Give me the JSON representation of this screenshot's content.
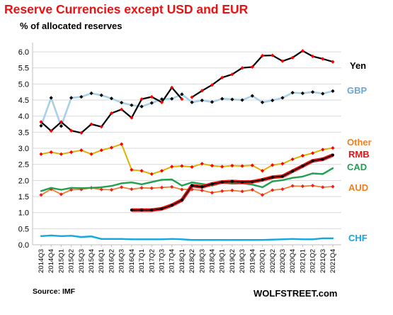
{
  "chart_data": {
    "type": "line",
    "title": "Reserve Currencies except USD and EUR",
    "subtitle": "% of allocated reserves",
    "source": "Source: IMF",
    "brand": "WOLFSTREET.com",
    "ylim": [
      0,
      6.2
    ],
    "y_ticks": [
      "0.0",
      "0.5",
      "1.0",
      "1.5",
      "2.0",
      "2.5",
      "3.0",
      "3.5",
      "4.0",
      "4.5",
      "5.0",
      "5.5",
      "6.0"
    ],
    "grid": "horizontal",
    "x": [
      "2014Q3",
      "2014Q4",
      "2015Q1",
      "2015Q2",
      "2015Q3",
      "2015Q4",
      "2016Q1",
      "2016Q2",
      "2016Q3",
      "2016Q4",
      "2017Q1",
      "2017Q2",
      "2017Q3",
      "2017Q4",
      "2018Q1",
      "2018Q2",
      "2018Q3",
      "2018Q4",
      "2019Q1",
      "2019Q2",
      "2019Q3",
      "2019Q4",
      "2020Q1",
      "2020Q2",
      "2020Q3",
      "2020Q4",
      "2021Q1",
      "2021Q2",
      "2021Q3",
      "2021Q4"
    ],
    "series": [
      {
        "name": "Yen",
        "color": "#ff0000",
        "line_color": "#000000",
        "stroke": 2.2,
        "marker": "diamond",
        "label_color": "#000000",
        "values": [
          null,
          null,
          null,
          null,
          null,
          null,
          null,
          null,
          null,
          null,
          null,
          null,
          null,
          null,
          null,
          4.59,
          4.79,
          4.97,
          5.2,
          5.3,
          5.5,
          5.53,
          5.88,
          5.89,
          5.71,
          5.82,
          6.03,
          5.86,
          5.78,
          5.69
        ]
      },
      {
        "name": "",
        "color": "#ff0000",
        "line_color": "#000000",
        "stroke": 2.2,
        "marker": "diamond",
        "label_color": "#000000",
        "values": [
          3.82,
          3.54,
          3.82,
          3.55,
          3.48,
          3.75,
          3.67,
          4.09,
          4.21,
          3.95,
          4.53,
          4.6,
          4.43,
          4.89,
          4.53,
          null,
          null,
          null,
          null,
          null,
          null,
          null,
          null,
          null,
          null,
          null,
          null,
          null,
          null,
          null
        ]
      },
      {
        "name": "GBP",
        "color": "#000000",
        "line_color": "#a8d0e6",
        "stroke": 2.6,
        "marker": "diamond",
        "label_color": "#6aa6d6",
        "values": [
          3.7,
          4.57,
          3.69,
          4.57,
          4.6,
          4.71,
          4.65,
          4.55,
          4.42,
          4.34,
          4.3,
          4.41,
          4.53,
          4.54,
          4.68,
          4.43,
          4.49,
          4.44,
          4.54,
          4.52,
          4.5,
          4.63,
          4.43,
          4.49,
          4.57,
          4.73,
          4.71,
          4.75,
          4.7,
          4.78
        ]
      },
      {
        "name": "Other",
        "color": "#ff0000",
        "line_color": "#e0b000",
        "stroke": 2.0,
        "marker": "diamond",
        "label_color": "#f08020",
        "values": [
          2.82,
          2.88,
          2.82,
          2.88,
          2.94,
          2.82,
          2.94,
          3.02,
          3.13,
          2.33,
          2.3,
          2.2,
          2.3,
          2.43,
          2.45,
          2.42,
          2.52,
          2.46,
          2.43,
          2.46,
          2.45,
          2.47,
          2.3,
          2.48,
          2.52,
          2.66,
          2.77,
          2.85,
          2.96,
          3.01
        ]
      },
      {
        "name": "RMB",
        "color": "#ff0000",
        "line_color": "#000000",
        "stroke": 2.6,
        "marker": "none",
        "label_color": "#ee1010",
        "values": [
          null,
          null,
          null,
          null,
          null,
          null,
          null,
          null,
          null,
          1.08,
          1.08,
          1.08,
          1.12,
          1.23,
          1.39,
          1.84,
          1.8,
          1.89,
          1.95,
          1.97,
          1.95,
          1.96,
          2.02,
          2.1,
          2.13,
          2.29,
          2.45,
          2.61,
          2.66,
          2.79
        ]
      },
      {
        "name": "CAD",
        "color": "#20a050",
        "line_color": "#20a050",
        "stroke": 2.4,
        "marker": "none",
        "label_color": "#20a050",
        "values": [
          1.67,
          1.77,
          1.71,
          1.77,
          1.76,
          1.77,
          1.79,
          1.83,
          1.91,
          1.94,
          1.88,
          1.95,
          2.02,
          2.03,
          1.84,
          1.94,
          1.89,
          1.84,
          1.93,
          1.9,
          1.91,
          1.87,
          1.79,
          1.97,
          2.01,
          2.08,
          2.12,
          2.22,
          2.2,
          2.38
        ]
      },
      {
        "name": "AUD",
        "color": "#ee2020",
        "line_color": "#f08030",
        "stroke": 1.8,
        "marker": "diamond",
        "label_color": "#f08020",
        "values": [
          1.55,
          1.73,
          1.57,
          1.71,
          1.72,
          1.77,
          1.72,
          1.71,
          1.79,
          1.73,
          1.77,
          1.76,
          1.78,
          1.8,
          1.72,
          1.72,
          1.69,
          1.62,
          1.67,
          1.69,
          1.66,
          1.71,
          1.55,
          1.7,
          1.73,
          1.83,
          1.82,
          1.84,
          1.79,
          1.81
        ]
      },
      {
        "name": "CHF",
        "color": "#10a8e0",
        "line_color": "#10a8e0",
        "stroke": 2.4,
        "marker": "none",
        "label_color": "#10a8e0",
        "values": [
          0.27,
          0.29,
          0.27,
          0.28,
          0.24,
          0.26,
          0.18,
          0.18,
          0.18,
          0.17,
          0.17,
          0.17,
          0.17,
          0.18,
          0.17,
          0.15,
          0.15,
          0.15,
          0.15,
          0.15,
          0.15,
          0.15,
          0.15,
          0.16,
          0.17,
          0.18,
          0.17,
          0.17,
          0.2,
          0.2
        ]
      }
    ],
    "rmb_red_overlay_color": "#ee1010"
  }
}
